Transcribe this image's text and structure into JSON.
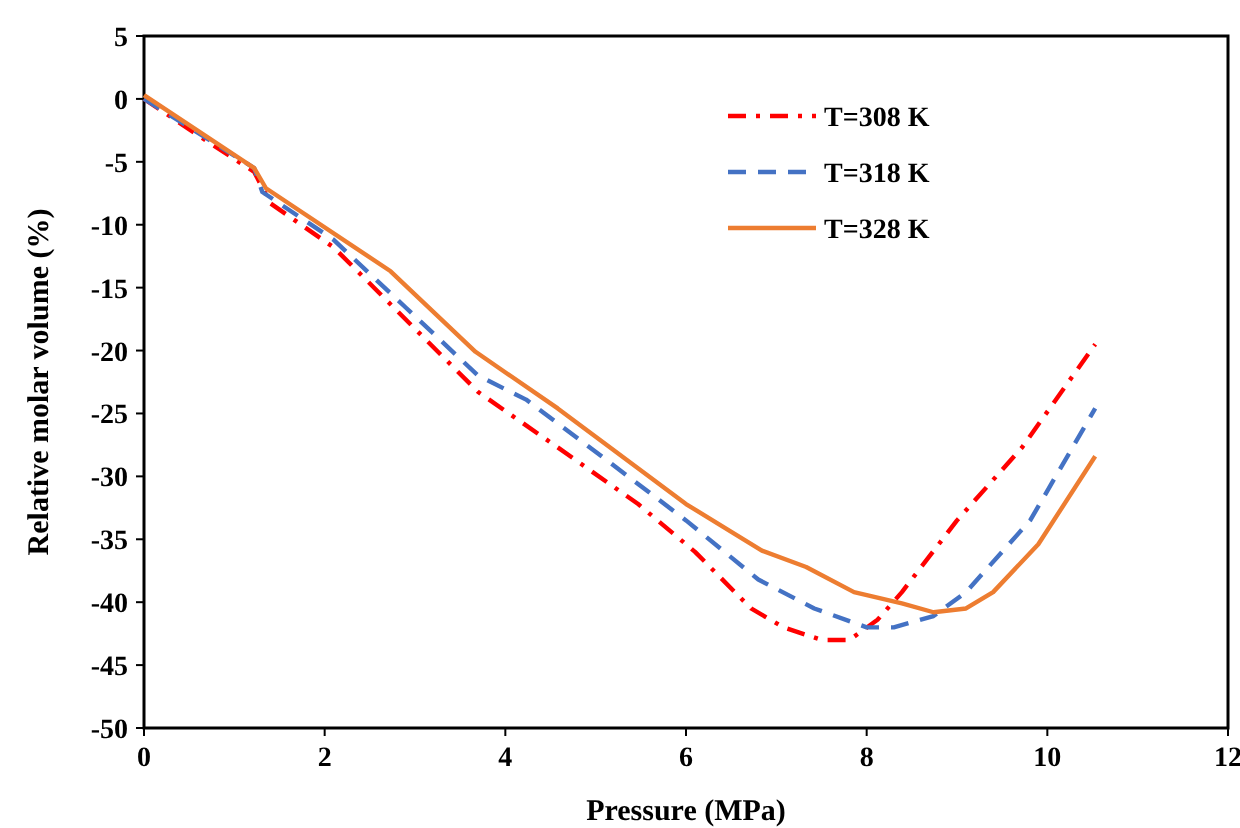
{
  "chart_data": {
    "type": "line",
    "xlabel": "Pressure (MPa)",
    "ylabel": "Relative molar volume (%)",
    "xlim": [
      0,
      12
    ],
    "xticks": [
      0,
      2,
      4,
      6,
      8,
      10,
      12
    ],
    "ylim": [
      -50,
      5
    ],
    "yticks": [
      5,
      0,
      -5,
      -10,
      -15,
      -20,
      -25,
      -30,
      -35,
      -40,
      -45,
      -50
    ],
    "grid": false,
    "legend": "top right",
    "series": [
      {
        "name": "T=308 K",
        "color": "#ff0000",
        "line_style": "dashdot",
        "x": [
          0,
          0.6,
          1.22,
          1.4,
          2.1,
          2.99,
          3.7,
          4.58,
          5.47,
          6.1,
          6.72,
          7.08,
          7.5,
          7.81,
          8.12,
          8.39,
          9.0,
          9.72,
          10.53
        ],
        "values": [
          0,
          -2.9,
          -5.8,
          -8.3,
          -11.8,
          -18.2,
          -23.3,
          -27.7,
          -32.2,
          -36.0,
          -40.5,
          -42.0,
          -43.0,
          -43.0,
          -41.4,
          -39.2,
          -33.5,
          -27.7,
          -19.5
        ]
      },
      {
        "name": "T=318 K",
        "color": "#4472c4",
        "line_style": "dashed",
        "x": [
          0,
          1.22,
          1.31,
          2.1,
          2.9,
          3.7,
          4.23,
          5.12,
          6.0,
          6.8,
          7.42,
          8.0,
          8.3,
          8.74,
          9.1,
          9.81,
          10.53
        ],
        "values": [
          0,
          -5.5,
          -7.4,
          -11.2,
          -16.6,
          -22,
          -23.9,
          -28.7,
          -33.5,
          -38.2,
          -40.5,
          -42.0,
          -42.0,
          -41.1,
          -39.2,
          -33.5,
          -24.6
        ]
      },
      {
        "name": "T=328 K",
        "color": "#ed7d31",
        "line_style": "solid",
        "x": [
          0,
          1.22,
          1.35,
          2.73,
          3.67,
          4.58,
          6.0,
          6.84,
          7.33,
          7.86,
          8.39,
          8.74,
          9.1,
          9.4,
          9.9,
          10.53
        ],
        "values": [
          0.3,
          -5.5,
          -7.1,
          -13.7,
          -20.1,
          -24.6,
          -32.2,
          -35.9,
          -37.2,
          -39.2,
          -40.1,
          -40.8,
          -40.5,
          -39.2,
          -35.4,
          -28.4
        ]
      }
    ]
  }
}
